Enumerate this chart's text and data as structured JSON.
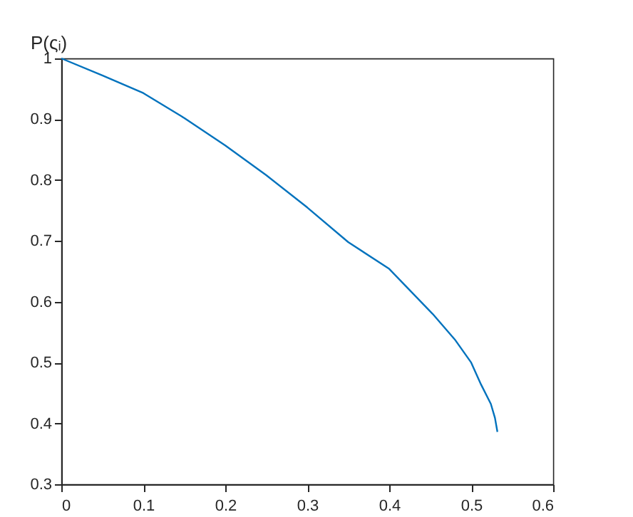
{
  "chart_data": {
    "type": "line",
    "ylabel": "P(ςᵢ)",
    "x": [
      0,
      0.05,
      0.1,
      0.15,
      0.2,
      0.25,
      0.3,
      0.35,
      0.4,
      0.453,
      0.48,
      0.5,
      0.512,
      0.524,
      0.529,
      0.532
    ],
    "series": [
      {
        "color": "#0072bd",
        "values": [
          1,
          0.972,
          0.943,
          0.902,
          0.857,
          0.808,
          0.755,
          0.698,
          0.654,
          0.58,
          0.538,
          0.5,
          0.464,
          0.432,
          0.409,
          0.386
        ]
      }
    ],
    "xlim": [
      0,
      0.6
    ],
    "xticks": [
      {
        "value": 0,
        "label": "0"
      },
      0.1,
      0.2,
      0.3,
      0.4,
      0.5,
      0.6
    ],
    "ylim": [
      0.3,
      1
    ],
    "yticks": [
      0.3,
      0.4,
      0.5,
      0.6,
      0.7,
      0.8,
      0.9,
      {
        "value": 1,
        "label": "1"
      }
    ],
    "grid": false,
    "marker": "none",
    "line_style": "solid"
  }
}
